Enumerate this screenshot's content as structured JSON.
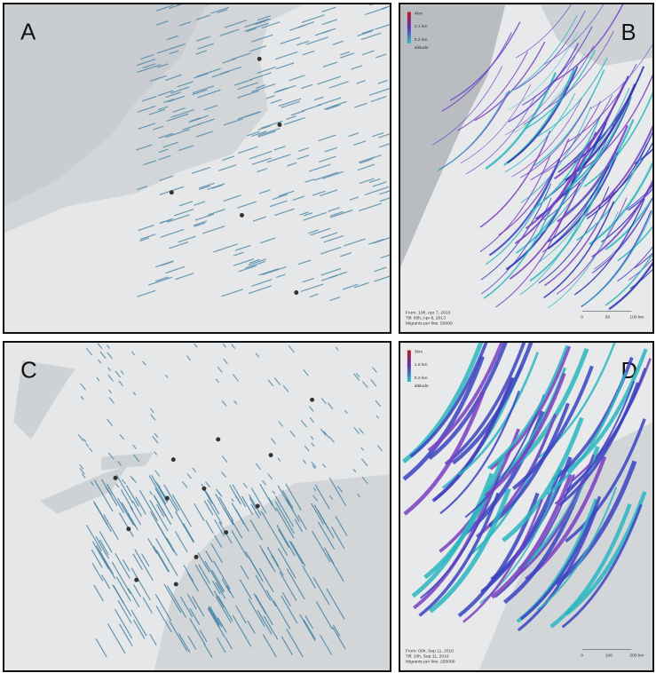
{
  "panels": [
    {
      "label": "A"
    },
    {
      "label": "B",
      "legend": {
        "levels": [
          "4km",
          "2.1 km",
          "0.2 km"
        ],
        "title": "altitude"
      },
      "footer": [
        "From: 19h, Apr 7, 2013",
        "Till: 00h, Apr 8, 2013",
        "Migrants per line: 50000"
      ],
      "scale": [
        "0",
        "50",
        "100 km"
      ]
    },
    {
      "label": "C"
    },
    {
      "label": "D",
      "legend": {
        "levels": [
          "3km",
          "1.6 km",
          "0.2 km"
        ],
        "title": "altitude"
      },
      "footer": [
        "From: 00h, Sep 11, 2010",
        "Till: 10h, Sep 11, 2010",
        "Migrants per line: 250000"
      ],
      "scale": [
        "0",
        "100",
        "200 km"
      ]
    }
  ]
}
